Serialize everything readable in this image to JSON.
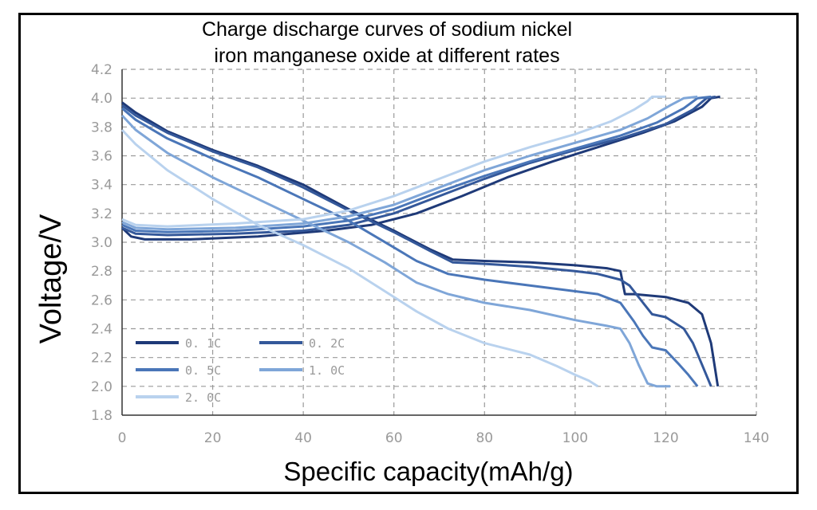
{
  "chart_data": {
    "type": "line",
    "title_lines": [
      "Charge discharge curves of sodium nickel",
      "iron manganese oxide at different rates"
    ],
    "xlabel": "Specific capacity(mAh/g)",
    "ylabel": "Voltage/V",
    "xlim": [
      0,
      140
    ],
    "ylim": [
      1.8,
      4.2
    ],
    "xticks": [
      0,
      20,
      40,
      60,
      80,
      100,
      120,
      140
    ],
    "yticks": [
      1.8,
      2.0,
      2.2,
      2.4,
      2.6,
      2.8,
      3.0,
      3.2,
      3.4,
      3.6,
      3.8,
      4.0,
      4.2
    ],
    "ytick_labels": [
      "1.8",
      "2.0",
      "2.2",
      "2.4",
      "2.6",
      "2.8",
      "3.0",
      "3.2",
      "3.4",
      "3.6",
      "3.8",
      "4.0",
      "4.2"
    ],
    "grid": true,
    "legend_position": "bottom-left",
    "series": [
      {
        "name": "0. 1C",
        "color": "#1f3a78",
        "charge": [
          [
            0,
            3.1
          ],
          [
            2,
            3.04
          ],
          [
            5,
            3.02
          ],
          [
            15,
            3.02
          ],
          [
            30,
            3.04
          ],
          [
            45,
            3.08
          ],
          [
            55,
            3.12
          ],
          [
            65,
            3.2
          ],
          [
            75,
            3.32
          ],
          [
            85,
            3.45
          ],
          [
            95,
            3.56
          ],
          [
            105,
            3.66
          ],
          [
            115,
            3.76
          ],
          [
            122,
            3.84
          ],
          [
            128,
            3.94
          ],
          [
            130,
            4.0
          ],
          [
            132,
            4.01
          ]
        ],
        "discharge": [
          [
            0,
            3.97
          ],
          [
            3,
            3.9
          ],
          [
            10,
            3.77
          ],
          [
            20,
            3.64
          ],
          [
            30,
            3.53
          ],
          [
            40,
            3.4
          ],
          [
            50,
            3.23
          ],
          [
            60,
            3.08
          ],
          [
            68,
            2.95
          ],
          [
            73,
            2.88
          ],
          [
            80,
            2.87
          ],
          [
            90,
            2.86
          ],
          [
            100,
            2.84
          ],
          [
            107,
            2.82
          ],
          [
            110,
            2.8
          ],
          [
            111,
            2.64
          ],
          [
            113,
            2.64
          ],
          [
            120,
            2.62
          ],
          [
            125,
            2.58
          ],
          [
            128,
            2.5
          ],
          [
            130,
            2.3
          ],
          [
            131,
            2.1
          ],
          [
            131.5,
            2.0
          ]
        ]
      },
      {
        "name": "0. 2C",
        "color": "#34589a",
        "charge": [
          [
            0,
            3.1
          ],
          [
            3,
            3.06
          ],
          [
            10,
            3.05
          ],
          [
            25,
            3.06
          ],
          [
            40,
            3.08
          ],
          [
            50,
            3.12
          ],
          [
            60,
            3.2
          ],
          [
            70,
            3.32
          ],
          [
            80,
            3.44
          ],
          [
            90,
            3.55
          ],
          [
            100,
            3.64
          ],
          [
            110,
            3.72
          ],
          [
            120,
            3.82
          ],
          [
            126,
            3.92
          ],
          [
            129,
            4.0
          ],
          [
            131,
            4.01
          ]
        ],
        "discharge": [
          [
            0,
            3.95
          ],
          [
            3,
            3.88
          ],
          [
            10,
            3.76
          ],
          [
            20,
            3.63
          ],
          [
            30,
            3.52
          ],
          [
            40,
            3.38
          ],
          [
            50,
            3.22
          ],
          [
            60,
            3.07
          ],
          [
            68,
            2.94
          ],
          [
            73,
            2.86
          ],
          [
            80,
            2.85
          ],
          [
            90,
            2.83
          ],
          [
            100,
            2.8
          ],
          [
            105,
            2.78
          ],
          [
            110,
            2.74
          ],
          [
            112,
            2.7
          ],
          [
            115,
            2.58
          ],
          [
            117,
            2.5
          ],
          [
            120,
            2.48
          ],
          [
            124,
            2.4
          ],
          [
            126,
            2.3
          ],
          [
            128,
            2.15
          ],
          [
            130,
            2.0
          ]
        ]
      },
      {
        "name": "0. 5C",
        "color": "#4a76b8",
        "charge": [
          [
            0,
            3.12
          ],
          [
            3,
            3.08
          ],
          [
            10,
            3.07
          ],
          [
            25,
            3.08
          ],
          [
            40,
            3.11
          ],
          [
            50,
            3.15
          ],
          [
            60,
            3.23
          ],
          [
            70,
            3.35
          ],
          [
            80,
            3.46
          ],
          [
            90,
            3.56
          ],
          [
            100,
            3.65
          ],
          [
            110,
            3.74
          ],
          [
            118,
            3.83
          ],
          [
            124,
            3.93
          ],
          [
            127,
            4.0
          ],
          [
            130,
            4.01
          ]
        ],
        "discharge": [
          [
            0,
            3.93
          ],
          [
            3,
            3.85
          ],
          [
            10,
            3.72
          ],
          [
            20,
            3.58
          ],
          [
            30,
            3.45
          ],
          [
            40,
            3.3
          ],
          [
            50,
            3.15
          ],
          [
            57,
            3.02
          ],
          [
            65,
            2.87
          ],
          [
            72,
            2.78
          ],
          [
            80,
            2.74
          ],
          [
            90,
            2.7
          ],
          [
            100,
            2.66
          ],
          [
            105,
            2.64
          ],
          [
            110,
            2.58
          ],
          [
            113,
            2.45
          ],
          [
            115,
            2.35
          ],
          [
            117,
            2.27
          ],
          [
            120,
            2.25
          ],
          [
            123,
            2.15
          ],
          [
            125,
            2.08
          ],
          [
            127,
            2.0
          ]
        ]
      },
      {
        "name": "1. 0C",
        "color": "#7fa6d8",
        "charge": [
          [
            0,
            3.14
          ],
          [
            3,
            3.1
          ],
          [
            10,
            3.09
          ],
          [
            25,
            3.1
          ],
          [
            40,
            3.13
          ],
          [
            50,
            3.18
          ],
          [
            60,
            3.26
          ],
          [
            70,
            3.38
          ],
          [
            80,
            3.5
          ],
          [
            90,
            3.6
          ],
          [
            100,
            3.69
          ],
          [
            110,
            3.78
          ],
          [
            116,
            3.86
          ],
          [
            121,
            3.95
          ],
          [
            124,
            4.0
          ],
          [
            127,
            4.01
          ]
        ],
        "discharge": [
          [
            0,
            3.88
          ],
          [
            3,
            3.78
          ],
          [
            10,
            3.62
          ],
          [
            20,
            3.45
          ],
          [
            30,
            3.3
          ],
          [
            40,
            3.15
          ],
          [
            50,
            3.0
          ],
          [
            58,
            2.86
          ],
          [
            65,
            2.72
          ],
          [
            72,
            2.64
          ],
          [
            80,
            2.58
          ],
          [
            90,
            2.53
          ],
          [
            100,
            2.46
          ],
          [
            107,
            2.42
          ],
          [
            110,
            2.4
          ],
          [
            112,
            2.3
          ],
          [
            114,
            2.15
          ],
          [
            116,
            2.02
          ],
          [
            118,
            2.0
          ],
          [
            121,
            2.0
          ]
        ]
      },
      {
        "name": "2. 0C",
        "color": "#b9d2ee",
        "charge": [
          [
            0,
            3.16
          ],
          [
            3,
            3.12
          ],
          [
            10,
            3.11
          ],
          [
            25,
            3.13
          ],
          [
            40,
            3.16
          ],
          [
            50,
            3.22
          ],
          [
            60,
            3.32
          ],
          [
            70,
            3.44
          ],
          [
            80,
            3.56
          ],
          [
            90,
            3.66
          ],
          [
            100,
            3.75
          ],
          [
            108,
            3.84
          ],
          [
            113,
            3.92
          ],
          [
            116,
            3.98
          ],
          [
            117,
            4.01
          ],
          [
            120,
            4.01
          ]
        ],
        "discharge": [
          [
            0,
            3.78
          ],
          [
            3,
            3.68
          ],
          [
            10,
            3.5
          ],
          [
            20,
            3.3
          ],
          [
            30,
            3.12
          ],
          [
            40,
            2.98
          ],
          [
            50,
            2.82
          ],
          [
            58,
            2.66
          ],
          [
            65,
            2.52
          ],
          [
            72,
            2.4
          ],
          [
            80,
            2.3
          ],
          [
            90,
            2.22
          ],
          [
            96,
            2.14
          ],
          [
            100,
            2.08
          ],
          [
            103,
            2.04
          ],
          [
            105,
            2.0
          ]
        ]
      }
    ]
  }
}
